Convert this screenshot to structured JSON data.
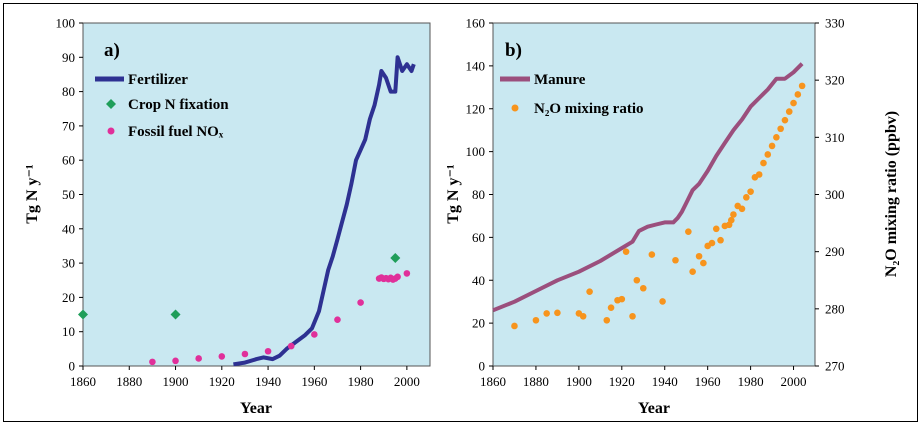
{
  "chart_data": [
    {
      "type": "line",
      "panel_label": "a)",
      "xlabel": "Year",
      "ylabel": "Tg N y⁻¹",
      "xlim": [
        1860,
        2010
      ],
      "ylim": [
        0,
        100
      ],
      "x_ticks": [
        "1860",
        "1880",
        "1900",
        "1920",
        "1940",
        "1960",
        "1980",
        "2000"
      ],
      "y_ticks": [
        "0",
        "10",
        "20",
        "30",
        "40",
        "50",
        "60",
        "70",
        "80",
        "90",
        "100"
      ],
      "legend_position": "top-left",
      "series": [
        {
          "name": "Fertilizer",
          "kind": "line",
          "color": "#2e3192",
          "x": [
            1925,
            1930,
            1935,
            1938,
            1942,
            1945,
            1948,
            1952,
            1956,
            1959,
            1962,
            1964,
            1966,
            1968,
            1970,
            1972,
            1974,
            1976,
            1978,
            1980,
            1982,
            1984,
            1986,
            1988,
            1989,
            1991,
            1993,
            1995,
            1996,
            1998,
            2000,
            2002,
            2003
          ],
          "y": [
            0.5,
            1.0,
            2.0,
            2.5,
            2.0,
            3.0,
            5.0,
            7.0,
            9.0,
            11.0,
            16.0,
            22.0,
            28.0,
            32.0,
            37.0,
            42.0,
            47.0,
            53.0,
            60.0,
            63.0,
            66.0,
            72.0,
            76.0,
            82.0,
            86.0,
            84.0,
            80.0,
            80.0,
            90.0,
            86.0,
            88.0,
            86.0,
            88.0
          ]
        },
        {
          "name": "Crop N fixation",
          "kind": "scatter",
          "marker": "diamond",
          "color": "#1f9e5a",
          "x": [
            1860,
            1900,
            1995
          ],
          "y": [
            15,
            15,
            31.5
          ]
        },
        {
          "name": "Fossil fuel NOₓ",
          "kind": "scatter",
          "marker": "circle",
          "color": "#e0309a",
          "x": [
            1890,
            1900,
            1910,
            1920,
            1930,
            1940,
            1950,
            1960,
            1970,
            1980,
            1988,
            1989,
            1990,
            1991,
            1992,
            1993,
            1994,
            1995,
            1996,
            2000
          ],
          "y": [
            1.2,
            1.5,
            2.2,
            2.8,
            3.5,
            4.3,
            5.8,
            9.2,
            13.5,
            18.5,
            25.5,
            25.8,
            25.4,
            25.6,
            25.3,
            25.7,
            25.2,
            25.5,
            26.0,
            27.0
          ]
        }
      ]
    },
    {
      "type": "line",
      "panel_label": "b)",
      "xlabel": "Year",
      "ylabel": "Tg N y⁻¹",
      "y2label": "N₂O mixing ratio (ppbv)",
      "xlim": [
        1860,
        2010
      ],
      "ylim": [
        0,
        160
      ],
      "y2lim": [
        270,
        330
      ],
      "x_ticks": [
        "1860",
        "1880",
        "1900",
        "1920",
        "1940",
        "1960",
        "1980",
        "2000"
      ],
      "y_ticks": [
        "0",
        "20",
        "40",
        "60",
        "80",
        "100",
        "120",
        "140",
        "160"
      ],
      "y2_ticks": [
        "270",
        "280",
        "290",
        "300",
        "310",
        "320",
        "330"
      ],
      "legend_position": "top-left",
      "series": [
        {
          "name": "Manure",
          "kind": "line",
          "axis": "left",
          "color": "#9b4f7d",
          "x": [
            1860,
            1870,
            1880,
            1890,
            1900,
            1910,
            1920,
            1925,
            1928,
            1932,
            1936,
            1940,
            1944,
            1946,
            1948,
            1950,
            1953,
            1956,
            1960,
            1964,
            1968,
            1972,
            1976,
            1980,
            1984,
            1988,
            1992,
            1996,
            2000,
            2004
          ],
          "y": [
            26,
            30,
            35,
            40,
            44,
            49,
            55,
            58,
            63,
            65,
            66,
            67,
            67,
            69,
            72,
            76,
            82,
            85,
            91,
            98,
            104,
            110,
            115,
            121,
            125,
            129,
            134,
            134,
            137,
            141
          ]
        },
        {
          "name": "N₂O mixing ratio",
          "kind": "scatter",
          "marker": "circle",
          "axis": "right",
          "color": "#f7941d",
          "x": [
            1870,
            1880,
            1885,
            1890,
            1900,
            1902,
            1905,
            1913,
            1915,
            1918,
            1920,
            1922,
            1925,
            1927,
            1930,
            1934,
            1939,
            1945,
            1951,
            1953,
            1956,
            1958,
            1960,
            1962,
            1964,
            1966,
            1968,
            1970,
            1971,
            1972,
            1974,
            1976,
            1978,
            1980,
            1982,
            1984,
            1986,
            1988,
            1990,
            1992,
            1994,
            1996,
            1998,
            2000,
            2002,
            2004
          ],
          "y": [
            277,
            278,
            279.2,
            279.3,
            279.2,
            278.7,
            283,
            278,
            280.2,
            281.5,
            281.7,
            290,
            278.7,
            285,
            283.6,
            289.5,
            281.3,
            288.5,
            293.5,
            286.5,
            289.2,
            288,
            291,
            291.5,
            294,
            292,
            294.5,
            294.7,
            295.5,
            296.5,
            298,
            297.5,
            299.5,
            300.5,
            303,
            303.5,
            305.5,
            307,
            308.5,
            310,
            311.5,
            313,
            314.5,
            316,
            317.5,
            319
          ]
        }
      ]
    }
  ]
}
